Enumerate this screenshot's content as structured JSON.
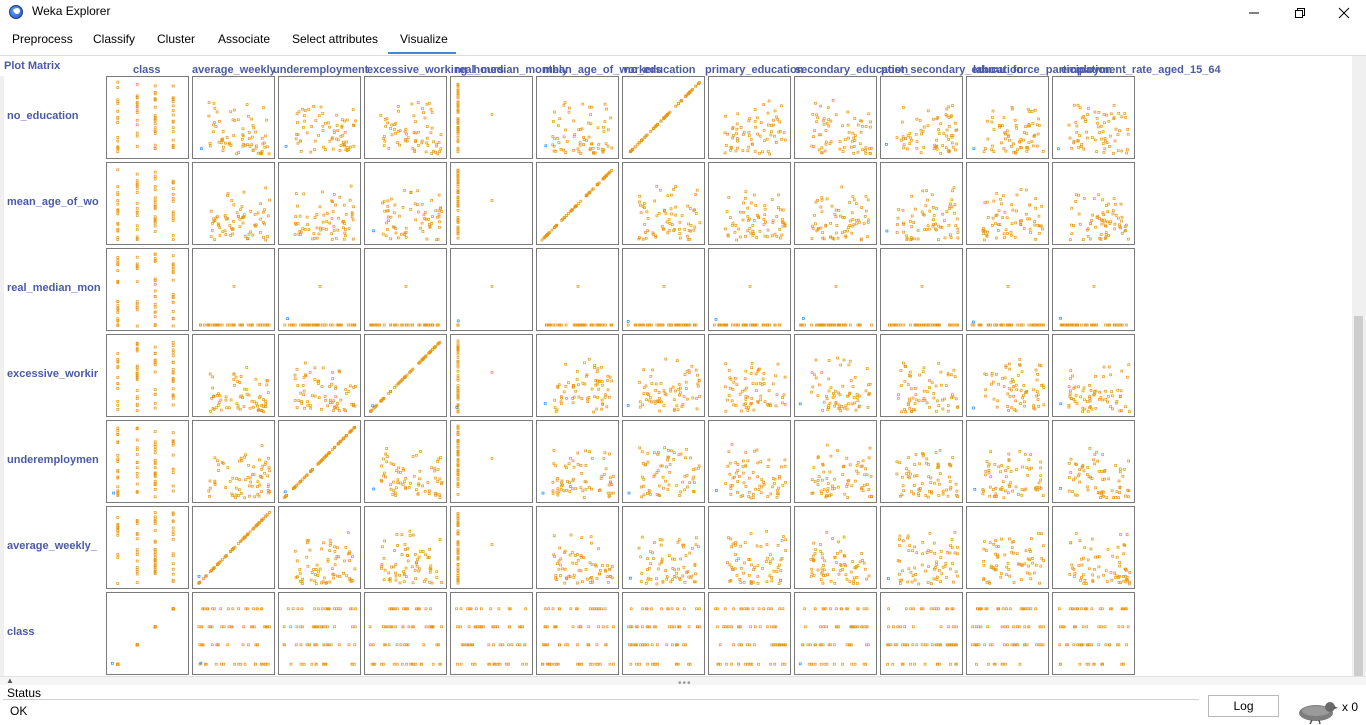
{
  "window": {
    "title": "Weka Explorer",
    "min_icon": "minimize-icon",
    "max_icon": "maximize-icon",
    "close_icon": "close-icon"
  },
  "tabs": [
    "Preprocess",
    "Classify",
    "Cluster",
    "Associate",
    "Select attributes",
    "Visualize"
  ],
  "active_tab": "Visualize",
  "plot_matrix": {
    "label": "Plot Matrix",
    "column_labels": [
      "class",
      "average_weekly",
      "underemployment",
      "excessive_working_hours",
      "real_median_monthly",
      "mean_age_of_workers",
      "no_education",
      "primary_education",
      "secondary_education",
      "post_secondary_education",
      "labour_force_participation",
      "employment_rate_aged_15_64"
    ],
    "row_labels": [
      "no_education",
      "mean_age_of_wo",
      "real_median_mon",
      "excessive_workir",
      "underemploymen",
      "average_weekly_",
      "class"
    ],
    "point_color": "#e8960f",
    "point_color_alt": "#1e90ff"
  },
  "status": {
    "title": "Status",
    "text": "OK"
  },
  "log_button": "Log",
  "task_count": "x 0"
}
